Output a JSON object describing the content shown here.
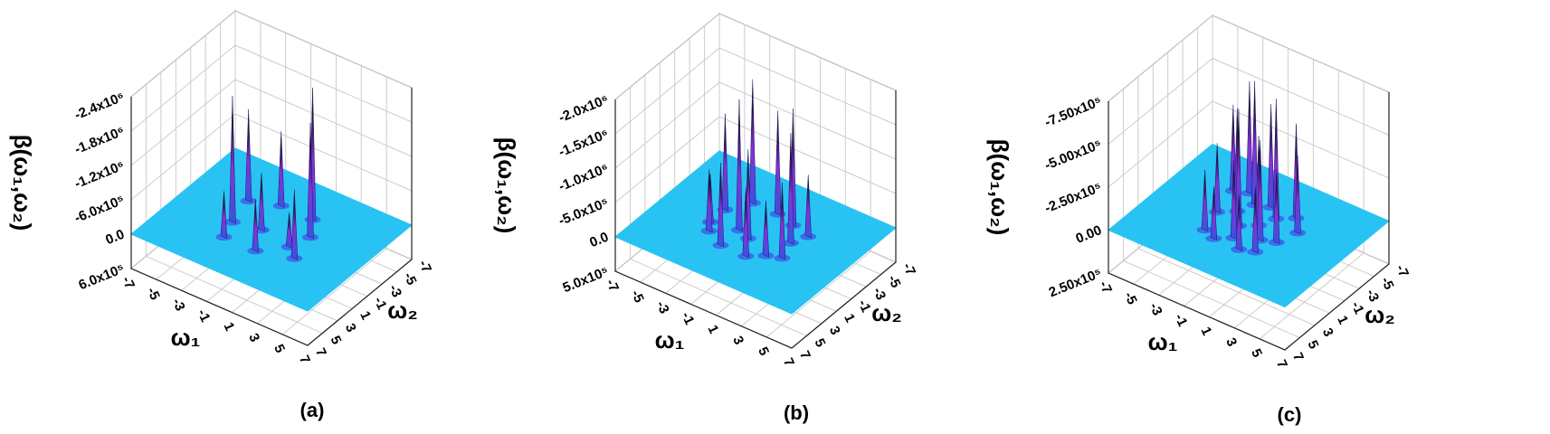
{
  "chart_data": [
    {
      "type": "surface",
      "panel_label": "(a)",
      "zlabel": "β(ω₁,ω₂)",
      "xlabel": "ω₁",
      "ylabel": "ω₂",
      "xlim": [
        -7,
        7
      ],
      "xticks": [
        -7,
        -5,
        -3,
        -1,
        1,
        3,
        5,
        7
      ],
      "ylim": [
        -7,
        7
      ],
      "yticks": [
        -7,
        -5,
        -3,
        -1,
        1,
        3,
        5,
        7
      ],
      "zlim": [
        600000,
        -2400000
      ],
      "zticks": [
        {
          "value": 600000,
          "label": "6.0x10⁵"
        },
        {
          "value": 0,
          "label": "0.0"
        },
        {
          "value": -600000,
          "label": "-6.0x10⁵"
        },
        {
          "value": -1200000,
          "label": "-1.2x10⁶"
        },
        {
          "value": -1800000,
          "label": "-1.8x10⁶"
        },
        {
          "value": -2400000,
          "label": "-2.4x10⁶"
        }
      ],
      "surface_color": "#29c3f3",
      "peaks": {
        "x": [
          -3,
          -2.5,
          -1,
          1.5,
          2.5,
          3,
          -2,
          0.5,
          2,
          -0.5
        ],
        "y": [
          -2,
          1,
          -3,
          -3,
          -1,
          2,
          3,
          3,
          1,
          0.5
        ],
        "z": [
          -1600000,
          -2200000,
          -1300000,
          -2300000,
          -2000000,
          -1200000,
          -800000,
          -900000,
          -600000,
          -1000000
        ]
      }
    },
    {
      "type": "surface",
      "panel_label": "(b)",
      "zlabel": "β(ω₁,ω₂)",
      "xlabel": "ω₁",
      "ylabel": "ω₂",
      "xlim": [
        -7,
        7
      ],
      "xticks": [
        -7,
        -5,
        -3,
        -1,
        1,
        3,
        5,
        7
      ],
      "ylim": [
        -7,
        7
      ],
      "yticks": [
        -7,
        -5,
        -3,
        -1,
        1,
        3,
        5,
        7
      ],
      "zlim": [
        500000,
        -2000000
      ],
      "zticks": [
        {
          "value": 500000,
          "label": "5.0x10⁵"
        },
        {
          "value": 0,
          "label": "0.0"
        },
        {
          "value": -500000,
          "label": "-5.0x10⁵"
        },
        {
          "value": -1000000,
          "label": "-1.0x10⁶"
        },
        {
          "value": -1500000,
          "label": "-1.5x10⁶"
        },
        {
          "value": -2000000,
          "label": "-2.0x10⁶"
        }
      ],
      "surface_color": "#29c3f3",
      "peaks": {
        "x": [
          -3,
          -2,
          -1,
          0,
          1.5,
          2.5,
          3,
          -2.5,
          -1,
          1,
          2,
          0,
          -3,
          3
        ],
        "y": [
          -1,
          -3,
          0.5,
          -3,
          -2.5,
          -0.5,
          1.5,
          2,
          3,
          3,
          2,
          1,
          1,
          -2
        ],
        "z": [
          -1400000,
          -1800000,
          -1900000,
          -1500000,
          -1700000,
          -1600000,
          -1100000,
          -900000,
          -1200000,
          -1000000,
          -800000,
          -1300000,
          -700000,
          -900000
        ]
      }
    },
    {
      "type": "surface",
      "panel_label": "(c)",
      "zlabel": "β(ω₁,ω₂)",
      "xlabel": "ω₁",
      "ylabel": "ω₂",
      "xlim": [
        -7,
        7
      ],
      "xticks": [
        -7,
        -5,
        -3,
        -1,
        1,
        3,
        5,
        7
      ],
      "ylim": [
        -7,
        7
      ],
      "yticks": [
        -7,
        -5,
        -3,
        -1,
        1,
        3,
        5,
        7
      ],
      "zlim": [
        250000,
        -750000
      ],
      "zticks": [
        {
          "value": 250000,
          "label": "2.50x10⁵"
        },
        {
          "value": 0,
          "label": "0.00"
        },
        {
          "value": -250000,
          "label": "-2.50x10⁵"
        },
        {
          "value": -500000,
          "label": "-5.00x10⁵"
        },
        {
          "value": -750000,
          "label": "-7.50x10⁵"
        }
      ],
      "surface_color": "#29c3f3",
      "peaks": {
        "x": [
          -3,
          -2,
          -1,
          0,
          1,
          2,
          3,
          -2.5,
          -1.5,
          -0.5,
          0.5,
          1.5,
          2.5,
          -2,
          0,
          2,
          -1,
          1
        ],
        "y": [
          -3,
          -3.5,
          -2.5,
          -3,
          -2,
          -3,
          -1.5,
          0,
          -1,
          0.5,
          -0.5,
          1,
          0.5,
          2.5,
          2,
          2.5,
          3,
          3
        ],
        "z": [
          -500000,
          -650000,
          -720000,
          -600000,
          -700000,
          -550000,
          -450000,
          -400000,
          -600000,
          -680000,
          -520000,
          -580000,
          -420000,
          -350000,
          -450000,
          -380000,
          -300000,
          -320000
        ]
      }
    }
  ]
}
